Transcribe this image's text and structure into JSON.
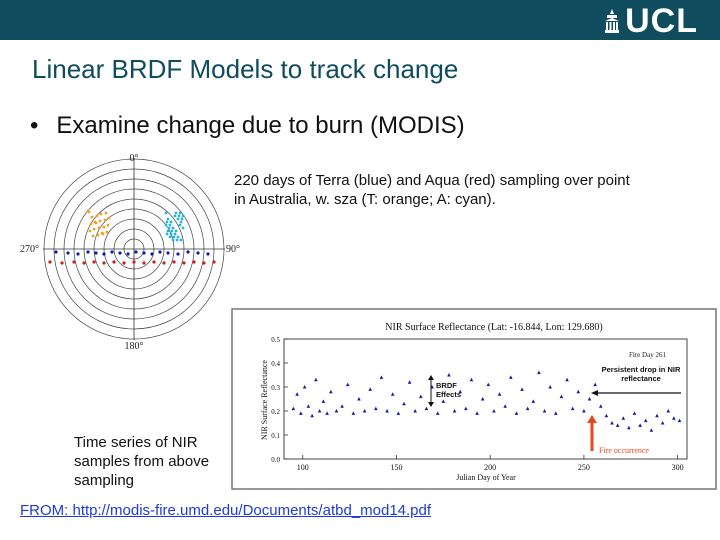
{
  "header": {
    "logo_text": "UCL"
  },
  "slide": {
    "title": "Linear BRDF Models to track change",
    "bullet_symbol": "•",
    "bullet": "Examine change due to burn (MODIS)",
    "caption_polar": "220 days of Terra (blue) and Aqua (red) sampling over point in Australia, w. sza (T: orange; A: cyan).",
    "caption_timeseries": "Time series of NIR samples from above sampling",
    "source": "FROM: http://modis-fire.umd.edu/Documents/atbd_mod14.pdf"
  },
  "polar_plot": {
    "labels": {
      "top": "0°",
      "left": "270°",
      "right": "90°",
      "bottom": "180°"
    }
  },
  "chart_data": {
    "type": "scatter",
    "title": "NIR Surface Reflectance (Lat: -16.844, Lon: 129.680)",
    "xlabel": "Julian Day of Year",
    "ylabel": "NIR Surface Reflectance",
    "xlim": [
      90,
      305
    ],
    "ylim": [
      0.0,
      0.5
    ],
    "xticks": [
      "100",
      "150",
      "200",
      "250",
      "300"
    ],
    "yticks": [
      "0.0",
      "0.1",
      "0.2",
      "0.3",
      "0.4",
      "0.5"
    ],
    "grid": false,
    "annotations": {
      "fire_day": "Fire Day 261",
      "persistent": "Persistent drop in NIR reflectance",
      "brdf": "BRDF Effects",
      "fire": "Fire occurrence"
    },
    "colors": {
      "points": "#1a1aa0",
      "fire": "#e8461c",
      "frame": "#555555"
    },
    "series": [
      {
        "x": [
          95,
          97,
          99,
          101,
          103,
          105,
          107,
          109,
          111,
          113,
          115,
          118,
          121,
          124,
          127,
          130,
          133,
          136,
          139,
          142,
          145,
          148,
          151,
          154,
          157,
          160,
          163,
          166,
          169,
          172,
          175,
          178,
          181,
          184,
          187,
          190,
          193,
          196,
          199,
          202,
          205,
          208,
          211,
          214,
          217,
          220,
          223,
          226,
          229,
          232,
          235,
          238,
          241,
          244,
          247,
          250,
          253,
          256,
          259,
          262,
          265,
          268,
          271,
          274,
          277,
          280,
          283,
          286,
          289,
          292,
          295,
          298,
          301
        ],
        "y": [
          0.21,
          0.27,
          0.19,
          0.3,
          0.22,
          0.18,
          0.33,
          0.2,
          0.24,
          0.19,
          0.28,
          0.2,
          0.22,
          0.31,
          0.19,
          0.25,
          0.2,
          0.29,
          0.21,
          0.34,
          0.2,
          0.27,
          0.19,
          0.23,
          0.32,
          0.2,
          0.26,
          0.21,
          0.3,
          0.19,
          0.24,
          0.35,
          0.2,
          0.28,
          0.21,
          0.33,
          0.19,
          0.25,
          0.31,
          0.2,
          0.27,
          0.22,
          0.34,
          0.19,
          0.29,
          0.21,
          0.24,
          0.36,
          0.2,
          0.3,
          0.19,
          0.26,
          0.33,
          0.21,
          0.28,
          0.2,
          0.25,
          0.31,
          0.22,
          0.18,
          0.15,
          0.14,
          0.17,
          0.13,
          0.19,
          0.14,
          0.16,
          0.12,
          0.18,
          0.15,
          0.2,
          0.17,
          0.16
        ]
      }
    ]
  }
}
